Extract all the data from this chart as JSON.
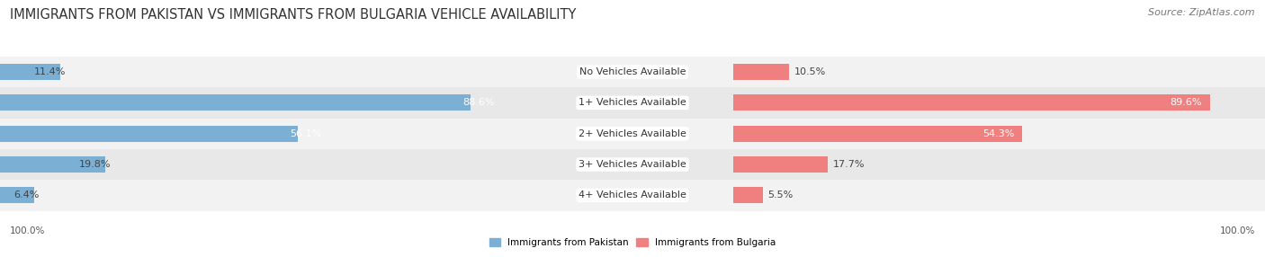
{
  "title": "IMMIGRANTS FROM PAKISTAN VS IMMIGRANTS FROM BULGARIA VEHICLE AVAILABILITY",
  "source": "Source: ZipAtlas.com",
  "categories": [
    "No Vehicles Available",
    "1+ Vehicles Available",
    "2+ Vehicles Available",
    "3+ Vehicles Available",
    "4+ Vehicles Available"
  ],
  "pakistan_values": [
    11.4,
    88.6,
    56.1,
    19.8,
    6.4
  ],
  "bulgaria_values": [
    10.5,
    89.6,
    54.3,
    17.7,
    5.5
  ],
  "pakistan_color": "#7BAFD4",
  "bulgaria_color": "#F08080",
  "row_bg_even": "#F2F2F2",
  "row_bg_odd": "#E8E8E8",
  "bar_height": 0.52,
  "title_fontsize": 10.5,
  "source_fontsize": 8,
  "label_fontsize": 8,
  "category_fontsize": 8,
  "footer_fontsize": 7.5,
  "max_value": 100.0,
  "legend_label_pakistan": "Immigrants from Pakistan",
  "legend_label_bulgaria": "Immigrants from Bulgaria"
}
